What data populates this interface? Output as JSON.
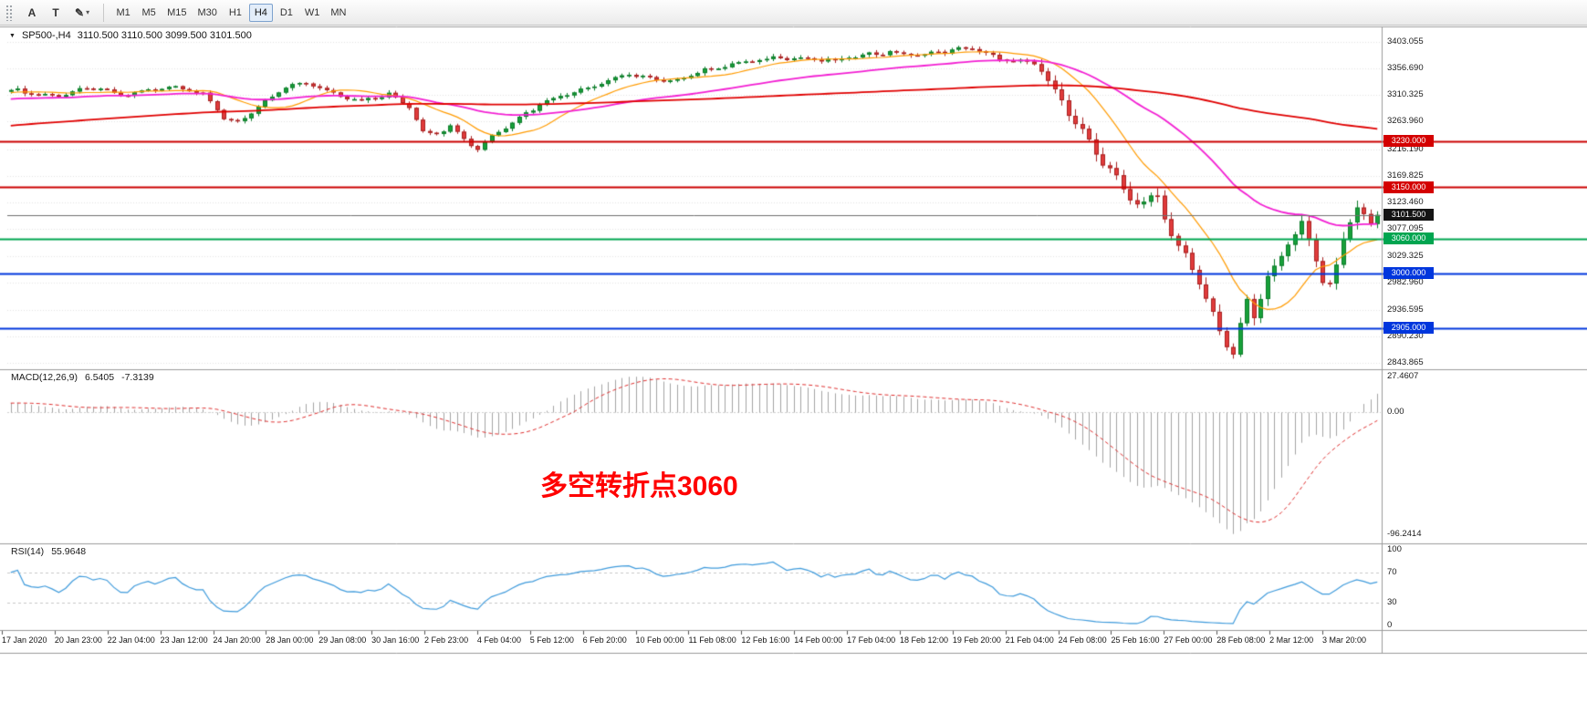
{
  "toolbar": {
    "grip_icon": "⠿",
    "text_tool_label": "A",
    "label_tool_label": "T",
    "draw_tool_icon": "✎",
    "caret_icon": "▾",
    "timeframes": [
      "M1",
      "M5",
      "M15",
      "M30",
      "H1",
      "H4",
      "D1",
      "W1",
      "MN"
    ],
    "active_timeframe": "H4"
  },
  "chart": {
    "header": {
      "marker": "▼",
      "symbol": "SP500-,H4",
      "ohlc": "3110.500 3110.500 3099.500 3101.500"
    }
  },
  "chart_data": [
    {
      "type": "candlestick",
      "title": "SP500-,H4",
      "timeframe": "H4",
      "n_bars": 200,
      "pre_bars": 200,
      "ylim": [
        2836,
        3425
      ],
      "up_color": "#18a13a",
      "up_border": "#0d7c2a",
      "down_color": "#e13b3b",
      "down_border": "#a72222",
      "noise": {
        "base_amp": 4,
        "crash_amp": 9,
        "crash_start": 150,
        "wick_base": 5,
        "wick_crash": 13
      },
      "price_path": [
        [
          -200,
          3100
        ],
        [
          -140,
          3190
        ],
        [
          -80,
          3258
        ],
        [
          -30,
          3300
        ],
        [
          0,
          3318
        ],
        [
          6,
          3310
        ],
        [
          12,
          3322
        ],
        [
          16,
          3308
        ],
        [
          20,
          3320
        ],
        [
          24,
          3326
        ],
        [
          28,
          3312
        ],
        [
          31,
          3268
        ],
        [
          33,
          3263
        ],
        [
          36,
          3290
        ],
        [
          40,
          3325
        ],
        [
          43,
          3330
        ],
        [
          47,
          3312
        ],
        [
          51,
          3302
        ],
        [
          55,
          3312
        ],
        [
          58,
          3290
        ],
        [
          60,
          3245
        ],
        [
          62,
          3242
        ],
        [
          64,
          3258
        ],
        [
          66,
          3235
        ],
        [
          68,
          3218
        ],
        [
          70,
          3240
        ],
        [
          74,
          3270
        ],
        [
          78,
          3300
        ],
        [
          82,
          3318
        ],
        [
          86,
          3332
        ],
        [
          90,
          3345
        ],
        [
          93,
          3338
        ],
        [
          96,
          3334
        ],
        [
          100,
          3352
        ],
        [
          104,
          3360
        ],
        [
          108,
          3368
        ],
        [
          112,
          3378
        ],
        [
          116,
          3374
        ],
        [
          120,
          3368
        ],
        [
          124,
          3380
        ],
        [
          128,
          3386
        ],
        [
          132,
          3380
        ],
        [
          136,
          3385
        ],
        [
          140,
          3392
        ],
        [
          143,
          3378
        ],
        [
          146,
          3370
        ],
        [
          149,
          3365
        ],
        [
          151,
          3335
        ],
        [
          153,
          3295
        ],
        [
          155,
          3258
        ],
        [
          157,
          3230
        ],
        [
          159,
          3198
        ],
        [
          161,
          3168
        ],
        [
          163,
          3132
        ],
        [
          165,
          3120
        ],
        [
          167,
          3130
        ],
        [
          169,
          3062
        ],
        [
          171,
          3030
        ],
        [
          173,
          2985
        ],
        [
          175,
          2930
        ],
        [
          177,
          2880
        ],
        [
          178,
          2858
        ],
        [
          179,
          2910
        ],
        [
          180,
          2945
        ],
        [
          181,
          2922
        ],
        [
          182,
          2955
        ],
        [
          183,
          2988
        ],
        [
          185,
          3030
        ],
        [
          187,
          3070
        ],
        [
          188,
          3090
        ],
        [
          189,
          3060
        ],
        [
          190,
          3025
        ],
        [
          191,
          2995
        ],
        [
          192,
          2985
        ],
        [
          193,
          3015
        ],
        [
          194,
          3052
        ],
        [
          195,
          3090
        ],
        [
          196,
          3118
        ],
        [
          197,
          3095
        ],
        [
          198,
          3080
        ],
        [
          199,
          3101.5
        ]
      ],
      "moving_averages": [
        {
          "name": "ma-fast",
          "type": "sma",
          "window": 12,
          "color": "#ff9b00",
          "width": 1.2
        },
        {
          "name": "ma-medium",
          "type": "ema",
          "window": 45,
          "color": "#f31fd3",
          "width": 1.8
        },
        {
          "name": "ma-slow",
          "type": "sma",
          "window": 150,
          "color": "#e00000",
          "width": 1.8
        }
      ],
      "hlines": [
        {
          "price": 3230,
          "color": "#cc0000",
          "width": 2,
          "tag": "3230.000",
          "tag_bg": "#d40000"
        },
        {
          "price": 3150,
          "color": "#cc0000",
          "width": 2,
          "tag": "3150.000",
          "tag_bg": "#d40000"
        },
        {
          "price": 3060,
          "color": "#00a550",
          "width": 2,
          "tag": "3060.000",
          "tag_bg": "#00a550"
        },
        {
          "price": 3000,
          "color": "#0036dd",
          "width": 2,
          "tag": "3000.000",
          "tag_bg": "#0036dd"
        },
        {
          "price": 2905,
          "color": "#0036dd",
          "width": 2,
          "tag": "2905.000",
          "tag_bg": "#0036dd"
        }
      ],
      "current_price": {
        "value": 3101.5,
        "tag": "3101.500",
        "tag_bg": "#141414",
        "line_color": "#6f6f6f"
      },
      "axis_labels": [
        "3403.055",
        "3356.690",
        "3310.325",
        "3263.960",
        "3216.190",
        "3169.825",
        "3123.460",
        "3077.095",
        "3029.325",
        "2982.960",
        "2936.595",
        "2890.230",
        "2843.865"
      ],
      "time_labels": [
        "17 Jan 2020",
        "20 Jan 23:00",
        "22 Jan 04:00",
        "23 Jan 12:00",
        "24 Jan 20:00",
        "28 Jan 00:00",
        "29 Jan 08:00",
        "30 Jan 16:00",
        "2 Feb 23:00",
        "4 Feb 04:00",
        "5 Feb 12:00",
        "6 Feb 20:00",
        "10 Feb 00:00",
        "11 Feb 08:00",
        "12 Feb 16:00",
        "14 Feb 00:00",
        "17 Feb 04:00",
        "18 Feb 12:00",
        "19 Feb 20:00",
        "21 Feb 04:00",
        "24 Feb 08:00",
        "25 Feb 16:00",
        "27 Feb 00:00",
        "28 Feb 08:00",
        "2 Mar 12:00",
        "3 Mar 20:00"
      ]
    },
    {
      "type": "macd",
      "label": "MACD(12,26,9)",
      "value_main": "6.5405",
      "value_signal": "-7.3139",
      "fast": 12,
      "slow": 26,
      "signal": 9,
      "range": [
        30.5,
        -101.5
      ],
      "max_value": 27.4607,
      "min_value": -96.2414,
      "axis_labels": [
        "27.4607",
        "0.00",
        "-96.2414"
      ],
      "histogram_color": "#a4a4a4",
      "signal_color": "#e03030",
      "annotation": {
        "text": "多空转折点3060",
        "color": "#ff0000"
      }
    },
    {
      "type": "rsi",
      "label": "RSI(14)",
      "value": "55.9648",
      "period": 14,
      "levels": [
        70,
        30
      ],
      "range": [
        103,
        -3
      ],
      "axis_labels": [
        "100",
        "70",
        "30",
        "0"
      ],
      "line_color": "#3f9bdc",
      "level_line_color": "#c8c8c8"
    }
  ]
}
